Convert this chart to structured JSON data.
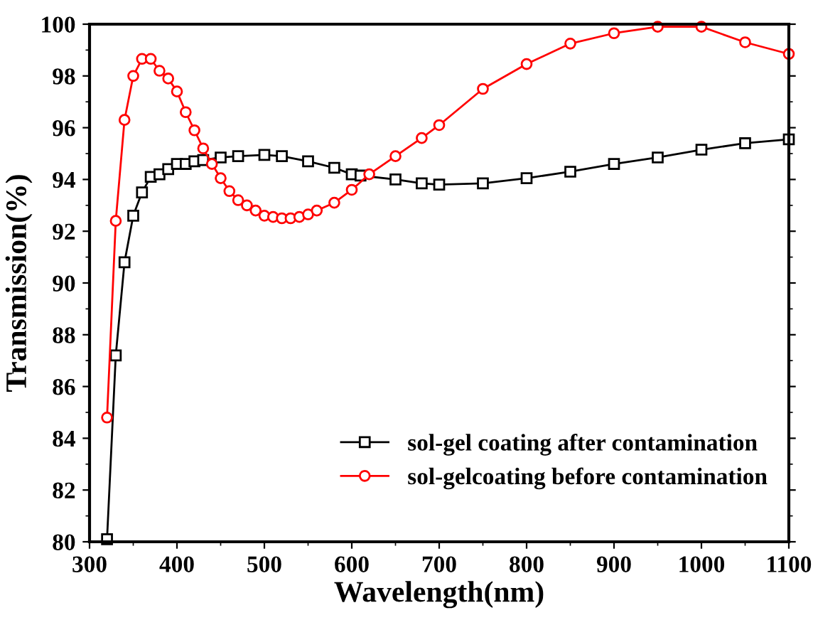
{
  "chart_data": {
    "type": "line",
    "xlabel": "Wavelength(nm)",
    "ylabel": "Transmission(%)",
    "xlim": [
      300,
      1100
    ],
    "xticks": [
      300,
      400,
      500,
      600,
      700,
      800,
      900,
      1000,
      1100
    ],
    "ylim": [
      80,
      100
    ],
    "yticks": [
      80,
      82,
      84,
      86,
      88,
      90,
      92,
      94,
      96,
      98,
      100
    ],
    "grid": false,
    "legend": "bottom right",
    "line_style": "solid",
    "series": [
      {
        "name": "sol-gel coating after contamination",
        "color": "#000000",
        "marker": "square",
        "x": [
          320,
          330,
          340,
          350,
          360,
          370,
          380,
          390,
          400,
          410,
          420,
          430,
          450,
          470,
          500,
          520,
          550,
          580,
          600,
          610,
          650,
          680,
          700,
          750,
          800,
          850,
          900,
          950,
          1000,
          1050,
          1100
        ],
        "values": [
          80.1,
          87.2,
          90.8,
          92.6,
          93.5,
          94.1,
          94.2,
          94.4,
          94.6,
          94.6,
          94.7,
          94.75,
          94.85,
          94.9,
          94.95,
          94.9,
          94.7,
          94.45,
          94.2,
          94.15,
          94.0,
          93.85,
          93.8,
          93.85,
          94.05,
          94.3,
          94.6,
          94.85,
          95.15,
          95.4,
          95.55
        ]
      },
      {
        "name": "sol-gelcoating before contamination",
        "color": "#ff0000",
        "marker": "circle",
        "x": [
          320,
          330,
          340,
          350,
          360,
          370,
          380,
          390,
          400,
          410,
          420,
          430,
          440,
          450,
          460,
          470,
          480,
          490,
          500,
          510,
          520,
          530,
          540,
          550,
          560,
          580,
          600,
          620,
          650,
          680,
          700,
          750,
          800,
          850,
          900,
          950,
          1000,
          1050,
          1100
        ],
        "values": [
          84.8,
          92.4,
          96.3,
          98.0,
          98.66,
          98.66,
          98.2,
          97.9,
          97.4,
          96.6,
          95.9,
          95.2,
          94.6,
          94.05,
          93.55,
          93.2,
          93.0,
          92.8,
          92.6,
          92.55,
          92.5,
          92.5,
          92.55,
          92.65,
          92.8,
          93.1,
          93.6,
          94.2,
          94.9,
          95.6,
          96.1,
          97.5,
          98.46,
          99.25,
          99.65,
          99.9,
          99.9,
          99.3,
          98.85
        ]
      }
    ]
  }
}
